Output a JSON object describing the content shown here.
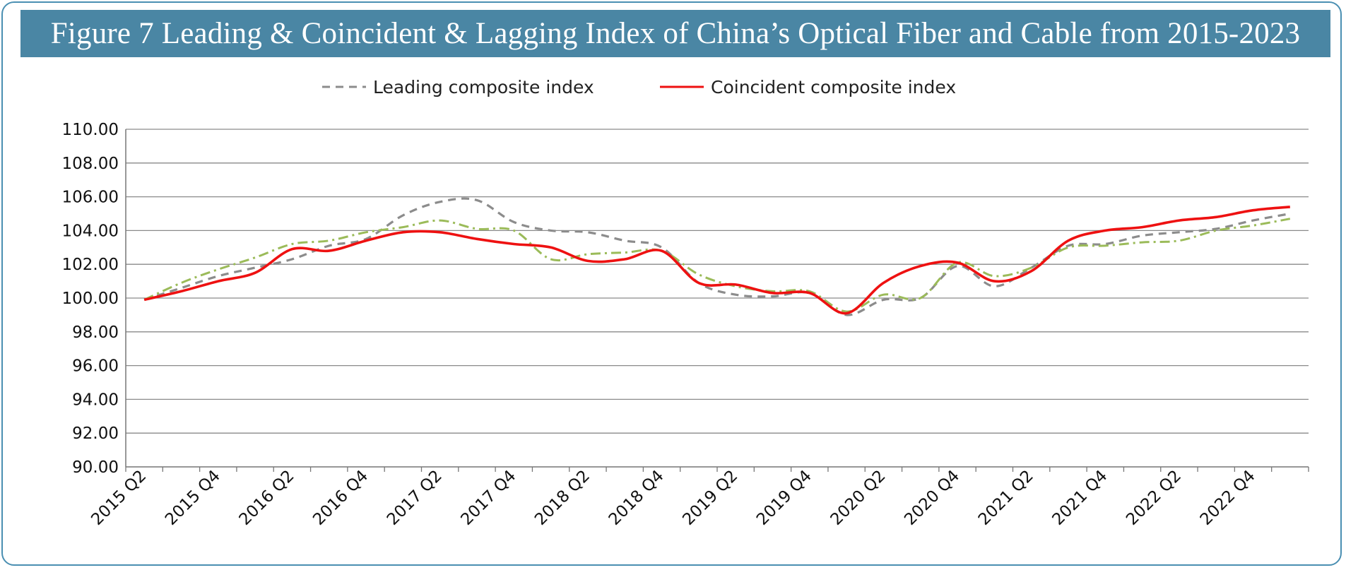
{
  "title": "Figure 7 Leading & Coincident & Lagging Index of China’s Optical Fiber and Cable from 2015-2023",
  "colors": {
    "title_bg": "#4a86a4",
    "frame": "#4a8fb2",
    "leading": "#8c8c8c",
    "coincident": "#ee1111",
    "lagging": "#9bbb59",
    "grid": "#8a8a8a"
  },
  "chart_data": {
    "type": "line",
    "title": "Figure 7 Leading & Coincident & Lagging Index of China’s Optical Fiber and Cable from 2015-2023",
    "xlabel": "",
    "ylabel": "",
    "ylim": [
      90,
      110
    ],
    "y_ticks": [
      "110.00",
      "108.00",
      "106.00",
      "104.00",
      "102.00",
      "100.00",
      "98.00",
      "96.00",
      "94.00",
      "92.00",
      "90.00"
    ],
    "grid": true,
    "legend_position": "top",
    "x_tick_labels": [
      "2015 Q2",
      "2015 Q4",
      "2016 Q2",
      "2016 Q4",
      "2017 Q2",
      "2017 Q4",
      "2018 Q2",
      "2018 Q4",
      "2019 Q2",
      "2019 Q4",
      "2020 Q2",
      "2020 Q4",
      "2021 Q2",
      "2021 Q4",
      "2022 Q2",
      "2022 Q4"
    ],
    "x": [
      "2015 Q2",
      "2015 Q3",
      "2015 Q4",
      "2016 Q1",
      "2016 Q2",
      "2016 Q3",
      "2016 Q4",
      "2017 Q1",
      "2017 Q2",
      "2017 Q3",
      "2017 Q4",
      "2018 Q1",
      "2018 Q2",
      "2018 Q3",
      "2018 Q4",
      "2019 Q1",
      "2019 Q2",
      "2019 Q3",
      "2019 Q4",
      "2020 Q1",
      "2020 Q2",
      "2020 Q3",
      "2020 Q4",
      "2021 Q1",
      "2021 Q2",
      "2021 Q3",
      "2021 Q4",
      "2022 Q1",
      "2022 Q2",
      "2022 Q3",
      "2022 Q4",
      "2023 Q1"
    ],
    "series": [
      {
        "name": "Leading composite index",
        "style": "dashed",
        "color": "#8c8c8c",
        "values": [
          99.9,
          100.6,
          101.3,
          101.8,
          102.3,
          103.1,
          103.5,
          104.9,
          105.7,
          105.8,
          104.5,
          104.0,
          103.9,
          103.4,
          103.0,
          100.9,
          100.2,
          100.1,
          100.3,
          99.0,
          99.9,
          100.0,
          101.9,
          100.7,
          101.8,
          103.1,
          103.2,
          103.7,
          103.9,
          104.1,
          104.6,
          105.0
        ]
      },
      {
        "name": "Coincident composite index",
        "style": "solid",
        "color": "#ee1111",
        "values": [
          99.9,
          100.4,
          101.0,
          101.5,
          102.9,
          102.8,
          103.4,
          103.9,
          103.9,
          103.5,
          103.2,
          103.0,
          102.2,
          102.3,
          102.8,
          100.9,
          100.8,
          100.3,
          100.3,
          99.1,
          100.9,
          101.9,
          102.1,
          101.0,
          101.6,
          103.4,
          104.0,
          104.2,
          104.6,
          104.8,
          105.2,
          105.4
        ]
      },
      {
        "name": "",
        "style": "dash-dot",
        "color": "#9bbb59",
        "values": [
          99.9,
          100.9,
          101.7,
          102.4,
          103.2,
          103.4,
          103.9,
          104.2,
          104.6,
          104.1,
          104.0,
          102.3,
          102.6,
          102.7,
          102.8,
          101.4,
          100.7,
          100.4,
          100.4,
          99.2,
          100.2,
          100.0,
          102.1,
          101.3,
          101.8,
          103.0,
          103.1,
          103.3,
          103.4,
          104.0,
          104.3,
          104.7
        ]
      }
    ]
  }
}
